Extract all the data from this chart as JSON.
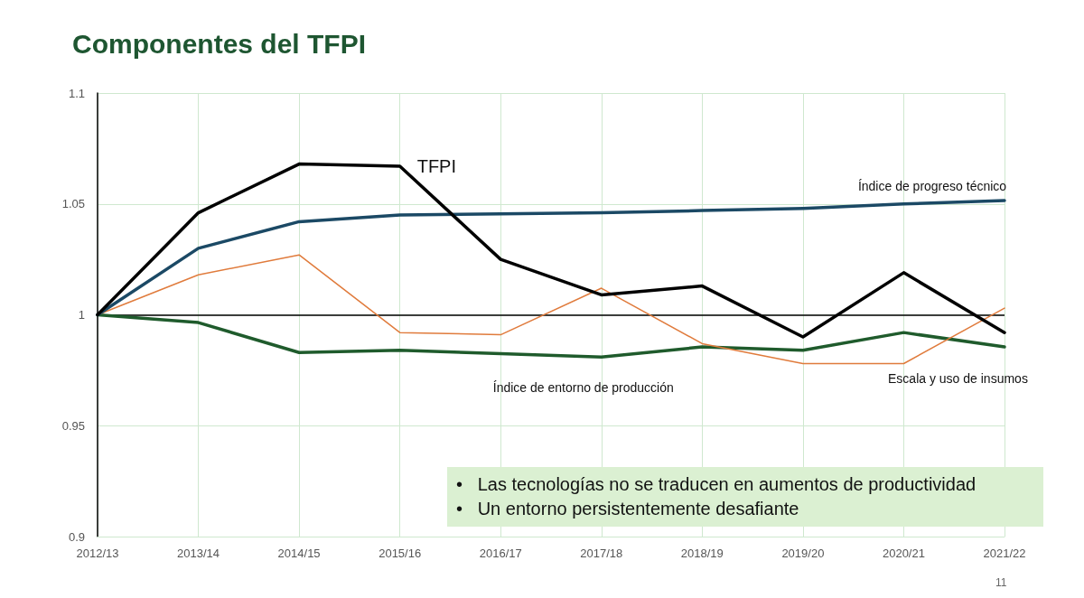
{
  "chart_data": {
    "type": "line",
    "title": "Componentes del TFPI",
    "categories": [
      "2012/13",
      "2013/14",
      "2014/15",
      "2015/16",
      "2016/17",
      "2017/18",
      "2018/19",
      "2019/20",
      "2020/21",
      "2021/22"
    ],
    "series": [
      {
        "name": "TFPI",
        "color": "#000000",
        "values": [
          1.0,
          1.046,
          1.068,
          1.067,
          1.025,
          1.009,
          1.013,
          0.99,
          1.019,
          0.992
        ]
      },
      {
        "name": "Índice de progreso técnico",
        "color": "#1b4965",
        "values": [
          1.0,
          1.03,
          1.042,
          1.045,
          1.0455,
          1.046,
          1.047,
          1.048,
          1.05,
          1.0515
        ]
      },
      {
        "name": "Escala y uso de insumos",
        "color": "#e07b3c",
        "values": [
          1.0,
          1.018,
          1.027,
          0.992,
          0.991,
          1.012,
          0.987,
          0.978,
          0.978,
          1.003
        ]
      },
      {
        "name": "Índice de entorno de producción",
        "color": "#1f5b2c",
        "values": [
          1.0,
          0.9965,
          0.983,
          0.984,
          0.9825,
          0.981,
          0.9855,
          0.984,
          0.992,
          0.9855
        ]
      }
    ],
    "ylim": [
      0.9,
      1.1
    ],
    "yticks": [
      0.9,
      0.95,
      1,
      1.05,
      1.1
    ],
    "grid": true,
    "legend": false,
    "marker": "none",
    "line_style": "solid",
    "ref_lines": [
      {
        "axis": "y",
        "value": 1,
        "color": "#000000"
      }
    ],
    "annotations": [
      "•   Las tecnologías no se traducen en aumentos de productividad",
      "•   Un entorno persistentemente desafiante",
      "11"
    ]
  }
}
